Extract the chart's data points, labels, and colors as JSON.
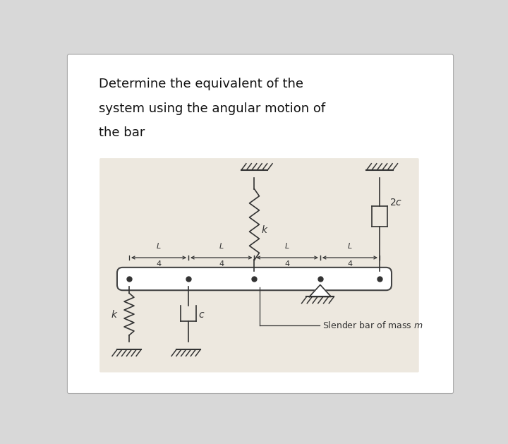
{
  "title_line1": "Determine the equivalent of the",
  "title_line2": "system using the angular motion of",
  "title_line3": "the bar",
  "bg_color": "#d8d8d8",
  "panel_color": "#ede8e0",
  "page_color": "#ffffff",
  "bar_color": "#444444",
  "ec": "#333333",
  "figsize": [
    7.2,
    6.29
  ],
  "dpi": 100
}
